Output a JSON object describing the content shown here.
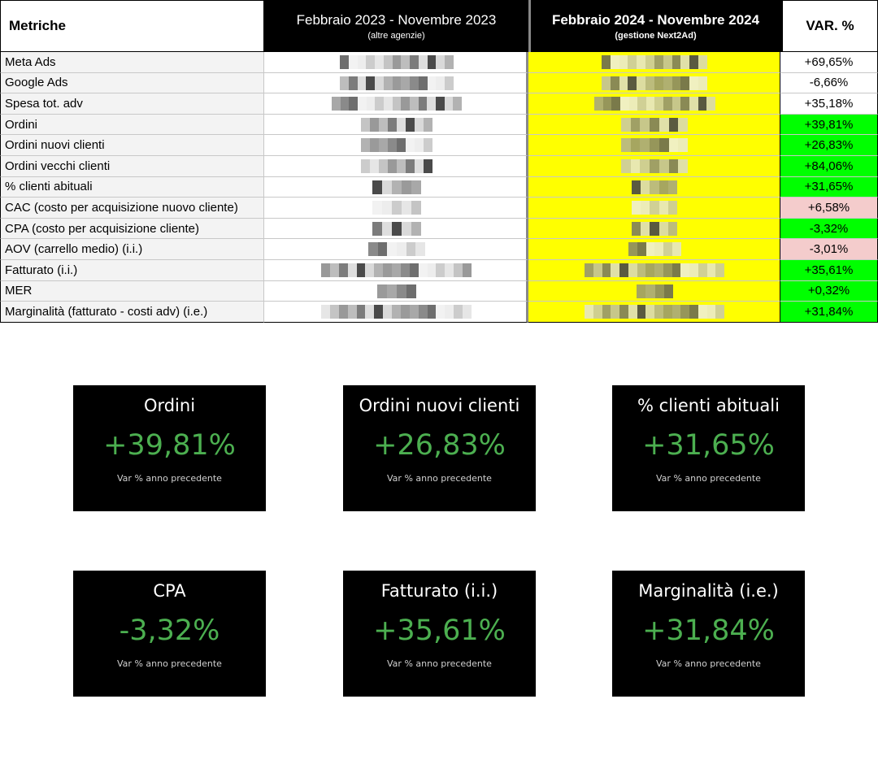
{
  "table": {
    "header": {
      "metric": "Metriche",
      "period_a": "Febbraio 2023 - Novembre 2023",
      "period_a_note": "(altre agenzie)",
      "period_b": "Febbraio 2024 - Novembre 2024",
      "period_b_note": "(gestione Next2Ad)",
      "var": "VAR. %"
    },
    "colors": {
      "positive": "#00ff00",
      "negative": "#f4cccc",
      "neutral": "#ffffff",
      "highlight": "#ffff00"
    },
    "rows": [
      {
        "label": "Meta Ads",
        "var": "+69,65%",
        "status": "neutral"
      },
      {
        "label": "Google Ads",
        "var": "-6,66%",
        "status": "neutral"
      },
      {
        "label": "Spesa tot. adv",
        "var": "+35,18%",
        "status": "neutral"
      },
      {
        "label": "Ordini",
        "var": "+39,81%",
        "status": "positive"
      },
      {
        "label": "Ordini nuovi clienti",
        "var": "+26,83%",
        "status": "positive"
      },
      {
        "label": "Ordini vecchi clienti",
        "var": "+84,06%",
        "status": "positive"
      },
      {
        "label": "% clienti abituali",
        "var": "+31,65%",
        "status": "positive"
      },
      {
        "label": "CAC (costo per acquisizione nuovo cliente)",
        "var": "+6,58%",
        "status": "negative"
      },
      {
        "label": "CPA (costo per acquisizione cliente)",
        "var": "-3,32%",
        "status": "positive"
      },
      {
        "label": "AOV (carrello medio) (i.i.)",
        "var": "-3,01%",
        "status": "negative"
      },
      {
        "label": "Fatturato (i.i.)",
        "var": "+35,61%",
        "status": "positive"
      },
      {
        "label": "MER",
        "var": "+0,32%",
        "status": "positive"
      },
      {
        "label": "Marginalità (fatturato - costi adv) (i.e.)",
        "var": "+31,84%",
        "status": "positive"
      }
    ]
  },
  "cards": [
    {
      "title": "Ordini",
      "value": "+39,81%",
      "subtitle": "Var % anno precedente"
    },
    {
      "title": "Ordini nuovi clienti",
      "value": "+26,83%",
      "subtitle": "Var % anno precedente"
    },
    {
      "title": "% clienti abituali",
      "value": "+31,65%",
      "subtitle": "Var % anno precedente"
    },
    {
      "title": "CPA",
      "value": "-3,32%",
      "subtitle": "Var % anno precedente"
    },
    {
      "title": "Fatturato (i.i.)",
      "value": "+35,61%",
      "subtitle": "Var % anno precedente"
    },
    {
      "title": "Marginalità (i.e.)",
      "value": "+31,84%",
      "subtitle": "Var % anno precedente"
    }
  ],
  "card_accent": "#4caf50"
}
